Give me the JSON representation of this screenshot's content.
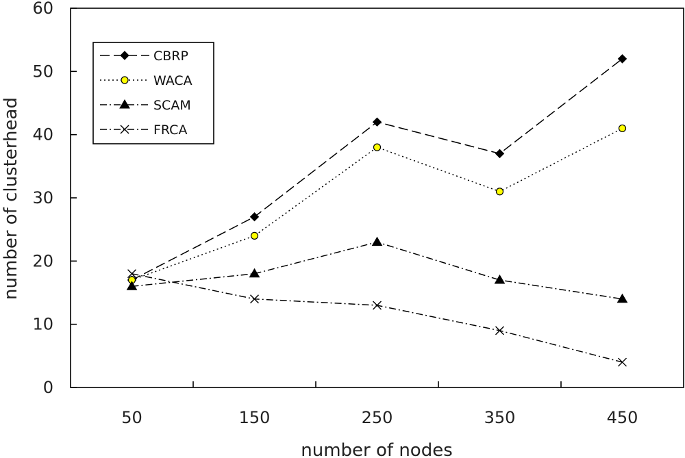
{
  "chart_data": {
    "type": "line",
    "title": "",
    "xlabel": "number of nodes",
    "ylabel": "number of clusterhead",
    "categories": [
      "50",
      "150",
      "250",
      "350",
      "450"
    ],
    "ylim": [
      0,
      60
    ],
    "yticks": [
      0,
      10,
      20,
      30,
      40,
      50,
      60
    ],
    "legend_position": "top-left",
    "grid": false,
    "series": [
      {
        "name": "CBRP",
        "values": [
          17,
          27,
          42,
          37,
          52
        ],
        "color": "#000000",
        "marker": "diamond",
        "line_style": "dashed"
      },
      {
        "name": "WACA",
        "values": [
          17,
          24,
          38,
          31,
          41
        ],
        "color": "#000000",
        "marker_fill": "#ffff00",
        "marker": "circle",
        "line_style": "dotted"
      },
      {
        "name": "SCAM",
        "values": [
          16,
          18,
          23,
          17,
          14
        ],
        "color": "#000000",
        "marker": "triangle",
        "line_style": "dash-dot"
      },
      {
        "name": "FRCA",
        "values": [
          18,
          14,
          13,
          9,
          4
        ],
        "color": "#000000",
        "marker": "x",
        "line_style": "dash-dot"
      }
    ]
  }
}
